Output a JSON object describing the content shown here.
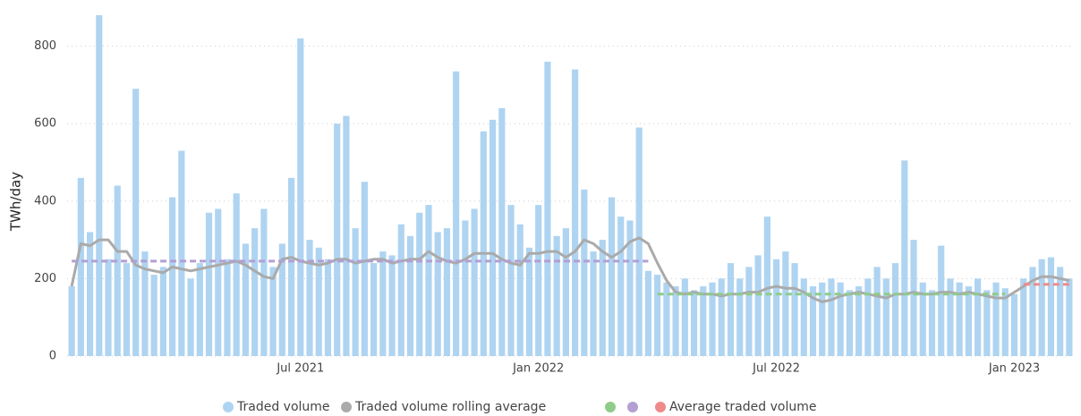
{
  "chart_data": {
    "type": "bar",
    "ylabel": "TWh/day",
    "categories": [
      null,
      null,
      null,
      null,
      null,
      null,
      null,
      null,
      null,
      null,
      null,
      null,
      null,
      null,
      null,
      null,
      null,
      null,
      null,
      null,
      null,
      null,
      null,
      null,
      null,
      "Jul 2021",
      null,
      null,
      null,
      null,
      null,
      null,
      null,
      null,
      null,
      null,
      null,
      null,
      null,
      null,
      null,
      null,
      null,
      null,
      null,
      null,
      null,
      null,
      null,
      null,
      null,
      "Jan 2022",
      null,
      null,
      null,
      null,
      null,
      null,
      null,
      null,
      null,
      null,
      null,
      null,
      null,
      null,
      null,
      null,
      null,
      null,
      null,
      null,
      null,
      null,
      null,
      null,
      null,
      "Jul 2022",
      null,
      null,
      null,
      null,
      null,
      null,
      null,
      null,
      null,
      null,
      null,
      null,
      null,
      null,
      null,
      null,
      null,
      null,
      null,
      null,
      null,
      null,
      null,
      null,
      null,
      "Jan 2023",
      null,
      null,
      null,
      null,
      null,
      null
    ],
    "ylim": [
      0,
      880
    ],
    "yticks": [
      0,
      200,
      400,
      600,
      800
    ],
    "grid": true,
    "series": [
      {
        "name": "Traded volume",
        "type": "bar",
        "color": "#aed4f1",
        "values": [
          180,
          460,
          320,
          880,
          250,
          440,
          240,
          690,
          270,
          210,
          230,
          410,
          530,
          200,
          240,
          370,
          380,
          250,
          420,
          290,
          330,
          380,
          230,
          290,
          460,
          820,
          300,
          280,
          250,
          600,
          620,
          330,
          450,
          240,
          270,
          260,
          340,
          310,
          370,
          390,
          320,
          330,
          735,
          350,
          380,
          580,
          610,
          640,
          390,
          340,
          280,
          390,
          760,
          310,
          330,
          740,
          430,
          270,
          300,
          410,
          360,
          350,
          590,
          220,
          210,
          190,
          180,
          200,
          170,
          180,
          190,
          200,
          240,
          200,
          230,
          260,
          360,
          250,
          270,
          240,
          200,
          180,
          190,
          200,
          190,
          170,
          180,
          200,
          230,
          200,
          240,
          505,
          300,
          190,
          170,
          285,
          200,
          190,
          180,
          200,
          170,
          190,
          175,
          160,
          200,
          230,
          250,
          255,
          230,
          200
        ]
      },
      {
        "name": "Traded volume rolling average",
        "type": "line",
        "color": "#aaaaaa",
        "values": [
          180,
          290,
          285,
          300,
          300,
          270,
          270,
          235,
          225,
          220,
          215,
          230,
          225,
          220,
          225,
          230,
          235,
          240,
          245,
          235,
          220,
          205,
          200,
          250,
          255,
          245,
          240,
          235,
          240,
          250,
          250,
          240,
          245,
          250,
          250,
          240,
          245,
          250,
          250,
          270,
          255,
          245,
          240,
          250,
          265,
          265,
          265,
          250,
          240,
          235,
          265,
          265,
          270,
          270,
          255,
          270,
          300,
          290,
          270,
          255,
          270,
          295,
          305,
          290,
          240,
          195,
          165,
          160,
          165,
          160,
          160,
          155,
          160,
          160,
          165,
          165,
          175,
          180,
          175,
          175,
          165,
          150,
          140,
          145,
          155,
          160,
          165,
          160,
          155,
          150,
          160,
          160,
          165,
          160,
          160,
          165,
          165,
          160,
          165,
          160,
          155,
          150,
          150,
          165,
          180,
          195,
          205,
          205,
          200,
          195
        ]
      },
      {
        "name": null,
        "type": "dashed",
        "color": "#8fcc8a",
        "values": [
          null,
          null,
          null,
          null,
          null,
          null,
          null,
          null,
          null,
          null,
          null,
          null,
          null,
          null,
          null,
          null,
          null,
          null,
          null,
          null,
          null,
          null,
          null,
          null,
          null,
          null,
          null,
          null,
          null,
          null,
          null,
          null,
          null,
          null,
          null,
          null,
          null,
          null,
          null,
          null,
          null,
          null,
          null,
          null,
          null,
          null,
          null,
          null,
          null,
          null,
          null,
          null,
          null,
          null,
          null,
          null,
          null,
          null,
          null,
          null,
          null,
          null,
          null,
          null,
          160,
          160,
          160,
          160,
          160,
          160,
          160,
          160,
          160,
          160,
          160,
          160,
          160,
          160,
          160,
          160,
          160,
          160,
          160,
          160,
          160,
          160,
          160,
          160,
          160,
          160,
          160,
          160,
          160,
          160,
          160,
          160,
          160,
          160,
          160,
          160,
          160,
          160,
          160,
          null,
          null,
          null,
          null,
          null,
          null,
          null
        ]
      },
      {
        "name": null,
        "type": "dashed",
        "color": "#b39fd3",
        "values": [
          245,
          245,
          245,
          245,
          245,
          245,
          245,
          245,
          245,
          245,
          245,
          245,
          245,
          245,
          245,
          245,
          245,
          245,
          245,
          245,
          245,
          245,
          245,
          245,
          245,
          245,
          245,
          245,
          245,
          245,
          245,
          245,
          245,
          245,
          245,
          245,
          245,
          245,
          245,
          245,
          245,
          245,
          245,
          245,
          245,
          245,
          245,
          245,
          245,
          245,
          245,
          245,
          245,
          245,
          245,
          245,
          245,
          245,
          245,
          245,
          245,
          245,
          245,
          245,
          null,
          null,
          null,
          null,
          null,
          null,
          null,
          null,
          null,
          null,
          null,
          null,
          null,
          null,
          null,
          null,
          null,
          null,
          null,
          null,
          null,
          null,
          null,
          null,
          null,
          null,
          null,
          null,
          null,
          null,
          null,
          null,
          null,
          null,
          null,
          null,
          null,
          null,
          null,
          null,
          null,
          null,
          null,
          null,
          null,
          null
        ]
      },
      {
        "name": "Average traded volume",
        "type": "dashed",
        "color": "#ef8a8a",
        "values": [
          null,
          null,
          null,
          null,
          null,
          null,
          null,
          null,
          null,
          null,
          null,
          null,
          null,
          null,
          null,
          null,
          null,
          null,
          null,
          null,
          null,
          null,
          null,
          null,
          null,
          null,
          null,
          null,
          null,
          null,
          null,
          null,
          null,
          null,
          null,
          null,
          null,
          null,
          null,
          null,
          null,
          null,
          null,
          null,
          null,
          null,
          null,
          null,
          null,
          null,
          null,
          null,
          null,
          null,
          null,
          null,
          null,
          null,
          null,
          null,
          null,
          null,
          null,
          null,
          null,
          null,
          null,
          null,
          null,
          null,
          null,
          null,
          null,
          null,
          null,
          null,
          null,
          null,
          null,
          null,
          null,
          null,
          null,
          null,
          null,
          null,
          null,
          null,
          null,
          null,
          null,
          null,
          null,
          null,
          null,
          null,
          null,
          null,
          null,
          null,
          null,
          null,
          null,
          null,
          185,
          185,
          185,
          185,
          185,
          185
        ]
      }
    ]
  }
}
